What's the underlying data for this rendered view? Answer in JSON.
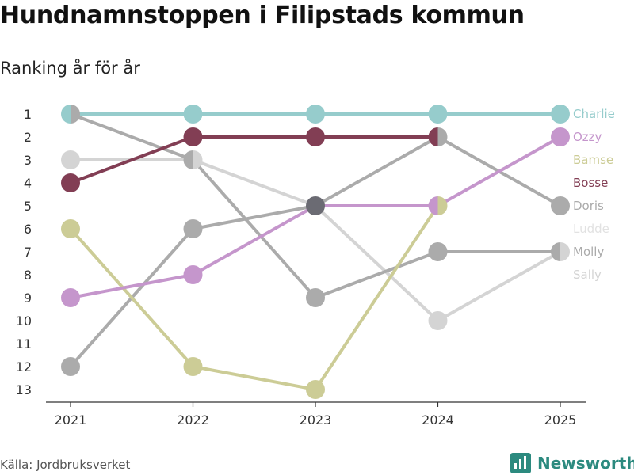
{
  "title": "Hundnamnstoppen i Filipstads kommun",
  "subtitle": "Ranking år för år",
  "source": "Källa: Jordbruksverket",
  "brand": {
    "name": "Newsworthy",
    "color": "#2c8a7f"
  },
  "chart_data": {
    "type": "line",
    "title": "Hundnamnstoppen i Filipstads kommun",
    "subtitle": "Ranking år för år",
    "xlabel": "",
    "ylabel": "",
    "x": [
      "2021",
      "2022",
      "2023",
      "2024",
      "2025"
    ],
    "y_ticks": [
      1,
      2,
      3,
      4,
      5,
      6,
      7,
      8,
      9,
      10,
      11,
      12,
      13
    ],
    "ylim": [
      13,
      1
    ],
    "y_inverted": true,
    "legend_placement": "right, end of lines",
    "series": [
      {
        "name": "Sally",
        "color": "#d4d4d4",
        "values": [
          3,
          3,
          5,
          10,
          7
        ]
      },
      {
        "name": "Ludde",
        "color": "#e2e2e2",
        "values": [
          null,
          null,
          null,
          null,
          null
        ]
      },
      {
        "name": "Molly",
        "color": "#ababab",
        "values": [
          12,
          6,
          5,
          2,
          5
        ]
      },
      {
        "name": "Doris",
        "color": "#ababab",
        "values": [
          1,
          3,
          9,
          7,
          7
        ]
      },
      {
        "name": "Bamse",
        "color": "#cccc96",
        "values": [
          6,
          12,
          13,
          5,
          null
        ]
      },
      {
        "name": "Ozzy",
        "color": "#c596cc",
        "values": [
          9,
          8,
          5,
          5,
          2
        ]
      },
      {
        "name": "Bosse",
        "color": "#823e54",
        "values": [
          4,
          2,
          2,
          2,
          null
        ]
      },
      {
        "name": "Charlie",
        "color": "#96cccc",
        "values": [
          1,
          1,
          1,
          1,
          1
        ]
      }
    ],
    "label_order": [
      "Charlie",
      "Ozzy",
      "Bamse",
      "Bosse",
      "Doris",
      "Ludde",
      "Molly",
      "Sally"
    ]
  }
}
